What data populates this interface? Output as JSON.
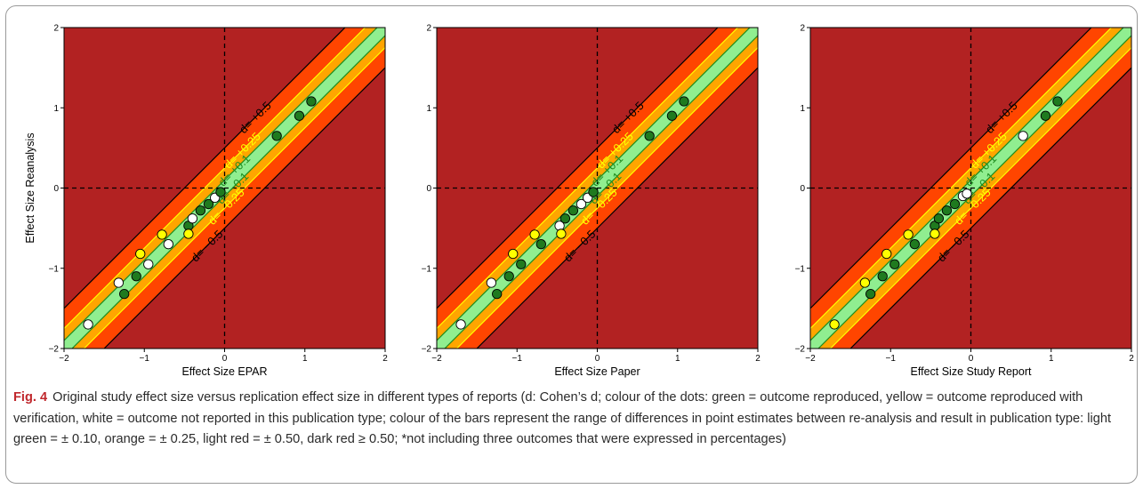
{
  "caption": {
    "figure_label": "Fig. 4",
    "text": "Original study effect size versus replication effect size in different types of reports (d: Cohen’s d; colour of the dots: green = outcome reproduced, yellow = outcome reproduced with verification, white = outcome not reported in this publication type; colour of the bars represent the range of differences in point estimates between re-analysis and result in publication type: light green = ± 0.10, orange = ± 0.25, light red = ± 0.50, dark red ≥ 0.50; *not including three outcomes that were expressed in percentages)"
  },
  "colors": {
    "dark_red": "#b22222",
    "light_red": "#ff4500",
    "orange": "#ffa500",
    "light_green": "#90ee90",
    "dot_green": "#1f7a1f",
    "dot_yellow": "#ffff00",
    "dot_white": "#ffffff",
    "band_line_05": "#000000",
    "band_line_025": "#ffff00",
    "band_line_01": "#1e8c1e"
  },
  "chart_data": [
    {
      "type": "scatter",
      "xlabel": "Effect Size EPAR",
      "ylabel": "Effect Size Reanalysis",
      "xlim": [
        -2,
        2
      ],
      "ylim": [
        -2,
        2
      ],
      "xticks": [
        "−2",
        "−1",
        "0",
        "1",
        "2"
      ],
      "yticks": [
        "−2",
        "−1",
        "0",
        "1",
        "2"
      ],
      "bands": [
        {
          "d": 0.5,
          "label_pos": "d= +0.5",
          "label_neg": "d= −0.5"
        },
        {
          "d": 0.25,
          "label_pos": "d= +0.25",
          "label_neg": "d= −0.25"
        },
        {
          "d": 0.1,
          "label_pos": "d= +0.1",
          "label_neg": "d= −0.1"
        }
      ],
      "points": [
        {
          "x": -1.7,
          "y": -1.7,
          "status": "white"
        },
        {
          "x": -1.32,
          "y": -1.18,
          "status": "white"
        },
        {
          "x": -1.25,
          "y": -1.32,
          "status": "green"
        },
        {
          "x": -1.1,
          "y": -1.1,
          "status": "green"
        },
        {
          "x": -1.05,
          "y": -0.82,
          "status": "yellow"
        },
        {
          "x": -0.95,
          "y": -0.95,
          "status": "white"
        },
        {
          "x": -0.78,
          "y": -0.58,
          "status": "yellow"
        },
        {
          "x": -0.7,
          "y": -0.7,
          "status": "white"
        },
        {
          "x": -0.45,
          "y": -0.47,
          "status": "green"
        },
        {
          "x": -0.45,
          "y": -0.57,
          "status": "yellow"
        },
        {
          "x": -0.4,
          "y": -0.38,
          "status": "white"
        },
        {
          "x": -0.3,
          "y": -0.28,
          "status": "green"
        },
        {
          "x": -0.2,
          "y": -0.2,
          "status": "green"
        },
        {
          "x": -0.12,
          "y": -0.12,
          "status": "white"
        },
        {
          "x": -0.05,
          "y": -0.05,
          "status": "green"
        },
        {
          "x": 0.65,
          "y": 0.65,
          "status": "green"
        },
        {
          "x": 0.93,
          "y": 0.9,
          "status": "green"
        },
        {
          "x": 1.08,
          "y": 1.08,
          "status": "green"
        }
      ]
    },
    {
      "type": "scatter",
      "xlabel": "Effect Size Paper",
      "ylabel": "",
      "xlim": [
        -2,
        2
      ],
      "ylim": [
        -2,
        2
      ],
      "xticks": [
        "−2",
        "−1",
        "0",
        "1",
        "2"
      ],
      "yticks": [
        "−2",
        "−1",
        "0",
        "1",
        "2"
      ],
      "bands": [
        {
          "d": 0.5,
          "label_pos": "d= +0.5",
          "label_neg": "d= −0.5"
        },
        {
          "d": 0.25,
          "label_pos": "d= +0.25",
          "label_neg": "d= −0.25"
        },
        {
          "d": 0.1,
          "label_pos": "d= +0.1",
          "label_neg": "d= −0.1"
        }
      ],
      "points": [
        {
          "x": -1.7,
          "y": -1.7,
          "status": "white"
        },
        {
          "x": -1.32,
          "y": -1.18,
          "status": "white"
        },
        {
          "x": -1.25,
          "y": -1.32,
          "status": "green"
        },
        {
          "x": -1.1,
          "y": -1.1,
          "status": "green"
        },
        {
          "x": -1.05,
          "y": -0.82,
          "status": "yellow"
        },
        {
          "x": -0.95,
          "y": -0.95,
          "status": "green"
        },
        {
          "x": -0.78,
          "y": -0.58,
          "status": "yellow"
        },
        {
          "x": -0.7,
          "y": -0.7,
          "status": "green"
        },
        {
          "x": -0.47,
          "y": -0.47,
          "status": "white"
        },
        {
          "x": -0.45,
          "y": -0.57,
          "status": "yellow"
        },
        {
          "x": -0.4,
          "y": -0.38,
          "status": "green"
        },
        {
          "x": -0.3,
          "y": -0.28,
          "status": "green"
        },
        {
          "x": -0.2,
          "y": -0.2,
          "status": "white"
        },
        {
          "x": -0.12,
          "y": -0.12,
          "status": "white"
        },
        {
          "x": -0.05,
          "y": -0.05,
          "status": "green"
        },
        {
          "x": 0.65,
          "y": 0.65,
          "status": "green"
        },
        {
          "x": 0.93,
          "y": 0.9,
          "status": "green"
        },
        {
          "x": 1.08,
          "y": 1.08,
          "status": "green"
        }
      ]
    },
    {
      "type": "scatter",
      "xlabel": "Effect Size Study Report",
      "ylabel": "",
      "xlim": [
        -2,
        2
      ],
      "ylim": [
        -2,
        2
      ],
      "xticks": [
        "−2",
        "−1",
        "0",
        "1",
        "2"
      ],
      "yticks": [
        "−2",
        "−1",
        "0",
        "1",
        "2"
      ],
      "bands": [
        {
          "d": 0.5,
          "label_pos": "d= +0.5",
          "label_neg": "d= −0.5"
        },
        {
          "d": 0.25,
          "label_pos": "d= +0.25",
          "label_neg": "d= −0.25"
        },
        {
          "d": 0.1,
          "label_pos": "d= +0.1",
          "label_neg": "d= −0.1"
        }
      ],
      "points": [
        {
          "x": -1.7,
          "y": -1.7,
          "status": "yellow"
        },
        {
          "x": -1.32,
          "y": -1.18,
          "status": "yellow"
        },
        {
          "x": -1.25,
          "y": -1.32,
          "status": "green"
        },
        {
          "x": -1.1,
          "y": -1.1,
          "status": "green"
        },
        {
          "x": -1.05,
          "y": -0.82,
          "status": "yellow"
        },
        {
          "x": -0.95,
          "y": -0.95,
          "status": "green"
        },
        {
          "x": -0.78,
          "y": -0.58,
          "status": "yellow"
        },
        {
          "x": -0.7,
          "y": -0.7,
          "status": "green"
        },
        {
          "x": -0.45,
          "y": -0.47,
          "status": "green"
        },
        {
          "x": -0.45,
          "y": -0.57,
          "status": "yellow"
        },
        {
          "x": -0.4,
          "y": -0.38,
          "status": "green"
        },
        {
          "x": -0.3,
          "y": -0.28,
          "status": "green"
        },
        {
          "x": -0.2,
          "y": -0.2,
          "status": "green"
        },
        {
          "x": -0.1,
          "y": -0.1,
          "status": "white"
        },
        {
          "x": -0.05,
          "y": -0.07,
          "status": "white"
        },
        {
          "x": 0.65,
          "y": 0.65,
          "status": "white"
        },
        {
          "x": 0.93,
          "y": 0.9,
          "status": "green"
        },
        {
          "x": 1.08,
          "y": 1.08,
          "status": "green"
        }
      ]
    }
  ]
}
